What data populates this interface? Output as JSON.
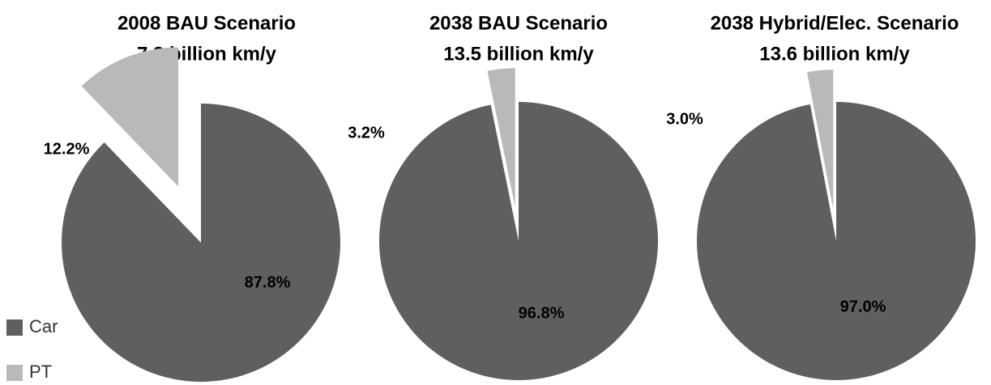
{
  "chart_data": [
    {
      "type": "pie",
      "title": "2008 BAU Scenario",
      "subtitle": "7.3 billion km/y",
      "categories": [
        "Car",
        "PT"
      ],
      "values": [
        87.8,
        12.2
      ],
      "value_labels": [
        "87.8%",
        "12.2%"
      ],
      "colors": [
        "#5f5f5f",
        "#b9b9b9"
      ]
    },
    {
      "type": "pie",
      "title": "2038 BAU Scenario",
      "subtitle": "13.5 billion km/y",
      "categories": [
        "Car",
        "PT"
      ],
      "values": [
        96.8,
        3.2
      ],
      "value_labels": [
        "96.8%",
        "3.2%"
      ],
      "colors": [
        "#5f5f5f",
        "#b9b9b9"
      ]
    },
    {
      "type": "pie",
      "title": "2038 Hybrid/Elec. Scenario",
      "subtitle": "13.6 billion km/y",
      "categories": [
        "Car",
        "PT"
      ],
      "values": [
        97.0,
        3.0
      ],
      "value_labels": [
        "97.0%",
        "3.0%"
      ],
      "colors": [
        "#5f5f5f",
        "#b9b9b9"
      ]
    }
  ]
}
